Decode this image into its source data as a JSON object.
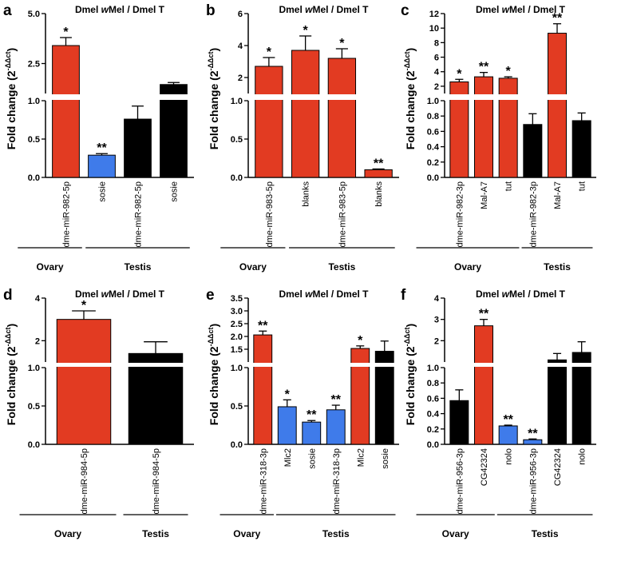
{
  "colors": {
    "red": "#e23b22",
    "blue": "#3f7bea",
    "black": "#000000"
  },
  "chart_data": [
    {
      "type": "bar",
      "panel": "a",
      "title": "Dmel wMel / Dmel T",
      "title_pre": "Dmel ",
      "title_italic": "w",
      "title_post": "Mel / Dmel T",
      "ylabel": "Fold change (2",
      "ylabel_exp": "-ΔΔct",
      "ylabel_close": ")",
      "categories": [
        "dme-miR-982-5p",
        "sosie",
        "dme-miR-982-5p",
        "sosie"
      ],
      "colors": [
        "red",
        "blue",
        "black",
        "black"
      ],
      "values": [
        3.4,
        0.29,
        0.76,
        1.45
      ],
      "errors": [
        0.4,
        0.02,
        0.17,
        0.1
      ],
      "significance": [
        "*",
        "**",
        "",
        ""
      ],
      "lower_ylim": [
        0,
        1
      ],
      "upper_ylim": [
        1,
        5
      ],
      "lower_ticks": [
        "0.0",
        "0.5",
        "1.0"
      ],
      "upper_ticks": [
        "2.5",
        "5.0"
      ],
      "groups": [
        {
          "label": "Ovary",
          "start": 0,
          "end": 0
        },
        {
          "label": "Testis",
          "start": 1,
          "end": 3
        }
      ]
    },
    {
      "type": "bar",
      "panel": "b",
      "title": "Dmel wMel / Dmel T",
      "title_pre": "Dmel ",
      "title_italic": "w",
      "title_post": "Mel / Dmel T",
      "ylabel": "Fold change (2",
      "ylabel_exp": "-ΔΔct",
      "ylabel_close": ")",
      "categories": [
        "dme-miR-983-5p",
        "blanks",
        "dme-miR-983-5p",
        "blanks"
      ],
      "colors": [
        "red",
        "red",
        "red",
        "red"
      ],
      "values": [
        2.7,
        3.7,
        3.2,
        0.1
      ],
      "errors": [
        0.55,
        0.9,
        0.6,
        0.01
      ],
      "significance": [
        "*",
        "*",
        "*",
        "**"
      ],
      "lower_ylim": [
        0,
        1
      ],
      "upper_ylim": [
        1,
        6
      ],
      "lower_ticks": [
        "0.0",
        "0.5",
        "1.0"
      ],
      "upper_ticks": [
        "2",
        "4",
        "6"
      ],
      "groups": [
        {
          "label": "Ovary",
          "start": 0,
          "end": 0
        },
        {
          "label": "Testis",
          "start": 1,
          "end": 3
        }
      ]
    },
    {
      "type": "bar",
      "panel": "c",
      "title": "Dmel wMel / Dmel T",
      "title_pre": "Dmel ",
      "title_italic": "w",
      "title_post": "Mel / Dmel T",
      "ylabel": "Fold change (2",
      "ylabel_exp": "-ΔΔct",
      "ylabel_close": ")",
      "categories": [
        "dme-miR-982-3p",
        "Mal-A7",
        "tut",
        "dme-miR-982-3p",
        "Mal-A7",
        "tut"
      ],
      "colors": [
        "red",
        "red",
        "red",
        "black",
        "red",
        "black"
      ],
      "values": [
        2.6,
        3.3,
        3.1,
        0.69,
        9.3,
        0.74
      ],
      "errors": [
        0.35,
        0.6,
        0.2,
        0.14,
        1.3,
        0.1
      ],
      "significance": [
        "*",
        "**",
        "*",
        "",
        "**",
        ""
      ],
      "lower_ylim": [
        0,
        1
      ],
      "upper_ylim": [
        1,
        12
      ],
      "lower_ticks": [
        "0.0",
        "0.2",
        "0.4",
        "0.6",
        "0.8",
        "1.0"
      ],
      "upper_ticks": [
        "2",
        "4",
        "6",
        "8",
        "10",
        "12"
      ],
      "groups": [
        {
          "label": "Ovary",
          "start": 0,
          "end": 2
        },
        {
          "label": "Testis",
          "start": 3,
          "end": 5
        }
      ]
    },
    {
      "type": "bar",
      "panel": "d",
      "title": "Dmel wMel / Dmel T",
      "title_pre": "Dmel ",
      "title_italic": "w",
      "title_post": "Mel / Dmel T",
      "ylabel": "Fold change (2",
      "ylabel_exp": "-ΔΔct",
      "ylabel_close": ")",
      "categories": [
        "dme-miR-984-5p",
        "dme-miR-984-5p"
      ],
      "colors": [
        "red",
        "black"
      ],
      "values": [
        3.0,
        1.4
      ],
      "errors": [
        0.4,
        0.55
      ],
      "significance": [
        "*",
        ""
      ],
      "lower_ylim": [
        0,
        1
      ],
      "upper_ylim": [
        1,
        4
      ],
      "lower_ticks": [
        "0.0",
        "0.5",
        "1.0"
      ],
      "upper_ticks": [
        "2",
        "4"
      ],
      "groups": [
        {
          "label": "Ovary",
          "start": 0,
          "end": 0
        },
        {
          "label": "Testis",
          "start": 1,
          "end": 1
        }
      ]
    },
    {
      "type": "bar",
      "panel": "e",
      "title": "Dmel wMel / Dmel T",
      "title_pre": "Dmel ",
      "title_italic": "w",
      "title_post": "Mel / Dmel T",
      "ylabel": "Fold change (2",
      "ylabel_exp": "-ΔΔct",
      "ylabel_close": ")",
      "categories": [
        "dme-miR-318-3p",
        "Mlc2",
        "sosie",
        "dme-miR-318-3p",
        "Mlc2",
        "sosie"
      ],
      "colors": [
        "red",
        "blue",
        "blue",
        "blue",
        "red",
        "black"
      ],
      "values": [
        2.06,
        0.49,
        0.29,
        0.45,
        1.53,
        1.42
      ],
      "errors": [
        0.15,
        0.09,
        0.02,
        0.06,
        0.1,
        0.4
      ],
      "significance": [
        "**",
        "*",
        "**",
        "**",
        "*",
        ""
      ],
      "lower_ylim": [
        0,
        1
      ],
      "upper_ylim": [
        1,
        3.5
      ],
      "lower_ticks": [
        "0.0",
        "0.5",
        "1.0"
      ],
      "upper_ticks": [
        "1.5",
        "2.0",
        "2.5",
        "3.0",
        "3.5"
      ],
      "groups": [
        {
          "label": "Ovary",
          "start": 0,
          "end": 0
        },
        {
          "label": "Testis",
          "start": 1,
          "end": 5
        }
      ]
    },
    {
      "type": "bar",
      "panel": "f",
      "title": "Dmel wMel / Dmel T",
      "title_pre": "Dmel ",
      "title_italic": "w",
      "title_post": "Mel / Dmel T",
      "ylabel": "Fold change (2",
      "ylabel_exp": "-ΔΔct",
      "ylabel_close": ")",
      "categories": [
        "dme-miR-956-3p",
        "CG42324",
        "nolo",
        "dme-miR-956-3p",
        "CG42324",
        "nolo"
      ],
      "colors": [
        "black",
        "red",
        "blue",
        "blue",
        "black",
        "black"
      ],
      "values": [
        0.57,
        2.7,
        0.24,
        0.06,
        1.1,
        1.45
      ],
      "errors": [
        0.14,
        0.3,
        0.01,
        0.01,
        0.3,
        0.5
      ],
      "significance": [
        "",
        "**",
        "**",
        "**",
        "",
        ""
      ],
      "lower_ylim": [
        0,
        1
      ],
      "upper_ylim": [
        1,
        4
      ],
      "lower_ticks": [
        "0.0",
        "0.2",
        "0.4",
        "0.6",
        "0.8",
        "1.0"
      ],
      "upper_ticks": [
        "2",
        "3",
        "4"
      ],
      "groups": [
        {
          "label": "Ovary",
          "start": 0,
          "end": 1
        },
        {
          "label": "Testis",
          "start": 2,
          "end": 5
        }
      ]
    }
  ]
}
